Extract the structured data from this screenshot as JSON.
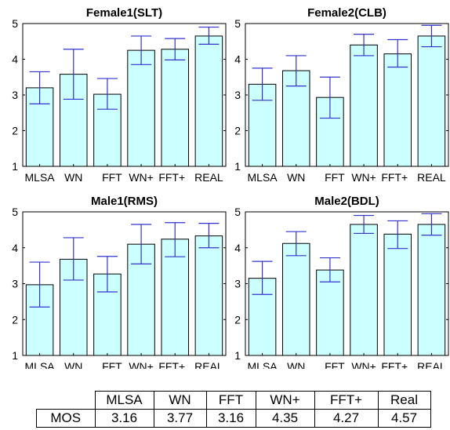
{
  "chart_data": [
    {
      "type": "bar",
      "title": "Female1(SLT)",
      "categories": [
        "MLSA",
        "WN",
        "FFT",
        "WN+",
        "FFT+",
        "REAL"
      ],
      "values": [
        3.2,
        3.58,
        3.02,
        4.25,
        4.28,
        4.65
      ],
      "error_low": [
        2.75,
        2.88,
        2.6,
        3.85,
        3.98,
        4.42
      ],
      "error_high": [
        3.65,
        4.28,
        3.46,
        4.65,
        4.58,
        4.9
      ],
      "ylim": [
        1,
        5
      ],
      "yticks": [
        1,
        2,
        3,
        4,
        5
      ],
      "xlabel": "",
      "ylabel": "",
      "grid": false
    },
    {
      "type": "bar",
      "title": "Female2(CLB)",
      "categories": [
        "MLSA",
        "WN",
        "FFT",
        "WN+",
        "FFT+",
        "REAL"
      ],
      "values": [
        3.3,
        3.68,
        2.93,
        4.4,
        4.15,
        4.65
      ],
      "error_low": [
        2.85,
        3.25,
        2.35,
        4.1,
        3.78,
        4.35
      ],
      "error_high": [
        3.75,
        4.1,
        3.5,
        4.7,
        4.55,
        4.95
      ],
      "ylim": [
        1,
        5
      ],
      "yticks": [
        1,
        2,
        3,
        4,
        5
      ],
      "xlabel": "",
      "ylabel": "",
      "grid": false
    },
    {
      "type": "bar",
      "title": "Male1(RMS)",
      "categories": [
        "MLSA",
        "WN",
        "FFT",
        "WN+",
        "FFT+",
        "REAL"
      ],
      "values": [
        2.97,
        3.68,
        3.27,
        4.1,
        4.24,
        4.33
      ],
      "error_low": [
        2.35,
        3.1,
        2.77,
        3.55,
        3.75,
        4.0
      ],
      "error_high": [
        3.6,
        4.28,
        3.76,
        4.65,
        4.7,
        4.68
      ],
      "ylim": [
        1,
        5
      ],
      "yticks": [
        1,
        2,
        3,
        4,
        5
      ],
      "xlabel": "",
      "ylabel": "",
      "grid": false
    },
    {
      "type": "bar",
      "title": "Male2(BDL)",
      "categories": [
        "MLSA",
        "WN",
        "FFT",
        "WN+",
        "FFT+",
        "REAL"
      ],
      "values": [
        3.15,
        4.12,
        3.38,
        4.65,
        4.38,
        4.65
      ],
      "error_low": [
        2.7,
        3.78,
        3.05,
        4.4,
        3.98,
        4.35
      ],
      "error_high": [
        3.62,
        4.45,
        3.72,
        4.9,
        4.75,
        4.95
      ],
      "ylim": [
        1,
        5
      ],
      "yticks": [
        1,
        2,
        3,
        4,
        5
      ],
      "xlabel": "",
      "ylabel": "",
      "grid": false
    }
  ],
  "table": {
    "headers": [
      "",
      "MLSA",
      "WN",
      "FFT",
      "WN+",
      "FFT+",
      "Real"
    ],
    "row_label": "MOS",
    "values": [
      "3.16",
      "3.77",
      "3.16",
      "4.35",
      "4.27",
      "4.57"
    ]
  },
  "colors": {
    "bar_fill": "#ccffff",
    "bar_stroke": "#000000",
    "error_bar": "#3333cc"
  }
}
